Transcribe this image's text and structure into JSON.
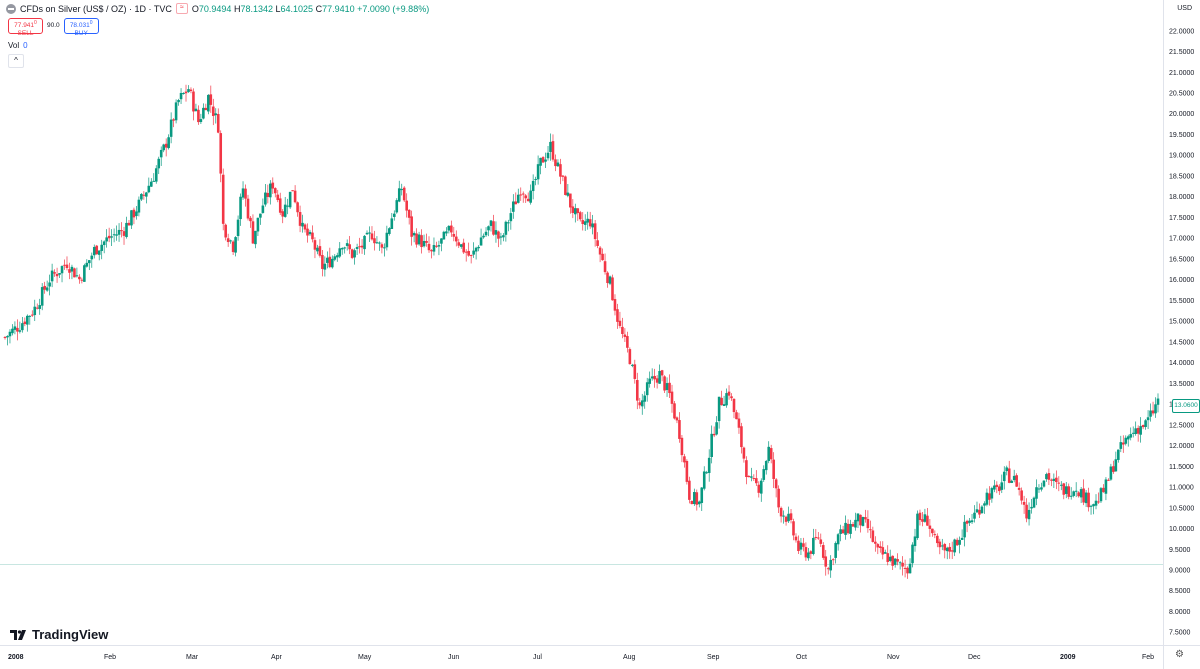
{
  "header": {
    "title": "CFDs on Silver (US$ / OZ) · 1D · TVC",
    "open_label": "O",
    "open": "70.9494",
    "high_label": "H",
    "high": "78.1342",
    "low_label": "L",
    "low": "64.1025",
    "close_label": "C",
    "close": "77.9410",
    "change": "+7.0090 (+9.88%)"
  },
  "trade": {
    "sell_price": "77.941",
    "sell_price_sup": "0",
    "sell_label": "SELL",
    "spread": "90.0",
    "buy_price": "78.031",
    "buy_price_sup": "0",
    "buy_label": "BUY"
  },
  "volume": {
    "label": "Vol",
    "value": "0"
  },
  "currency": "USD",
  "last_price_tag": "13.0600",
  "brand": "TradingView",
  "colors": {
    "up": "#089981",
    "down": "#f23645",
    "accent": "#2962ff"
  },
  "chart_data": {
    "type": "candlestick",
    "ylim": [
      7.3,
      22.2
    ],
    "y_ticks": [
      "22.0000",
      "21.5000",
      "21.0000",
      "20.5000",
      "20.0000",
      "19.5000",
      "19.0000",
      "18.5000",
      "18.0000",
      "17.5000",
      "17.0000",
      "16.5000",
      "16.0000",
      "15.5000",
      "15.0000",
      "14.5000",
      "14.0000",
      "13.5000",
      "13.0000",
      "12.5000",
      "12.0000",
      "11.5000",
      "11.0000",
      "10.5000",
      "10.0000",
      "9.5000",
      "9.0000",
      "8.5000",
      "8.0000",
      "7.5000"
    ],
    "x_labels": [
      "2008",
      "Feb",
      "Mar",
      "Apr",
      "May",
      "Jun",
      "Jul",
      "Aug",
      "Sep",
      "Oct",
      "Nov",
      "Dec",
      "2009",
      "Feb"
    ],
    "anchors": [
      [
        0,
        14.6
      ],
      [
        6,
        14.9
      ],
      [
        12,
        15.3
      ],
      [
        18,
        16.0
      ],
      [
        25,
        16.4
      ],
      [
        30,
        16.0
      ],
      [
        36,
        16.7
      ],
      [
        42,
        17.0
      ],
      [
        48,
        17.2
      ],
      [
        54,
        17.8
      ],
      [
        60,
        18.5
      ],
      [
        65,
        19.3
      ],
      [
        70,
        20.3
      ],
      [
        74,
        20.6
      ],
      [
        78,
        19.8
      ],
      [
        82,
        20.4
      ],
      [
        86,
        19.7
      ],
      [
        88,
        17.3
      ],
      [
        92,
        16.8
      ],
      [
        96,
        18.2
      ],
      [
        100,
        17.0
      ],
      [
        104,
        17.8
      ],
      [
        108,
        18.3
      ],
      [
        112,
        17.6
      ],
      [
        116,
        18.2
      ],
      [
        120,
        17.2
      ],
      [
        124,
        16.9
      ],
      [
        128,
        16.3
      ],
      [
        132,
        16.5
      ],
      [
        136,
        16.9
      ],
      [
        140,
        16.6
      ],
      [
        144,
        16.8
      ],
      [
        148,
        17.1
      ],
      [
        152,
        16.7
      ],
      [
        156,
        17.5
      ],
      [
        160,
        18.2
      ],
      [
        164,
        17.1
      ],
      [
        168,
        16.9
      ],
      [
        172,
        16.6
      ],
      [
        176,
        16.9
      ],
      [
        180,
        17.2
      ],
      [
        184,
        16.8
      ],
      [
        188,
        16.5
      ],
      [
        192,
        17.0
      ],
      [
        196,
        17.3
      ],
      [
        200,
        16.9
      ],
      [
        204,
        17.6
      ],
      [
        208,
        18.2
      ],
      [
        212,
        18.0
      ],
      [
        216,
        18.8
      ],
      [
        220,
        19.2
      ],
      [
        224,
        18.5
      ],
      [
        228,
        17.8
      ],
      [
        232,
        17.3
      ],
      [
        236,
        17.4
      ],
      [
        240,
        16.6
      ],
      [
        244,
        15.9
      ],
      [
        248,
        14.8
      ],
      [
        252,
        14.1
      ],
      [
        256,
        12.9
      ],
      [
        260,
        13.5
      ],
      [
        264,
        13.7
      ],
      [
        268,
        13.2
      ],
      [
        272,
        12.3
      ],
      [
        276,
        10.8
      ],
      [
        280,
        10.6
      ],
      [
        284,
        11.8
      ],
      [
        288,
        13.0
      ],
      [
        292,
        13.3
      ],
      [
        296,
        12.3
      ],
      [
        300,
        11.1
      ],
      [
        304,
        11.0
      ],
      [
        308,
        11.9
      ],
      [
        312,
        10.5
      ],
      [
        316,
        10.2
      ],
      [
        320,
        9.5
      ],
      [
        324,
        9.4
      ],
      [
        328,
        9.8
      ],
      [
        332,
        9.0
      ],
      [
        336,
        9.8
      ],
      [
        340,
        10.0
      ],
      [
        344,
        10.2
      ],
      [
        348,
        10.0
      ],
      [
        352,
        9.4
      ],
      [
        356,
        9.3
      ],
      [
        360,
        9.1
      ],
      [
        364,
        9.0
      ],
      [
        368,
        10.2
      ],
      [
        372,
        10.2
      ],
      [
        376,
        9.5
      ],
      [
        380,
        9.4
      ],
      [
        384,
        9.7
      ],
      [
        388,
        10.1
      ],
      [
        392,
        10.4
      ],
      [
        396,
        10.8
      ],
      [
        400,
        10.9
      ],
      [
        404,
        11.3
      ],
      [
        408,
        11.1
      ],
      [
        412,
        10.3
      ],
      [
        416,
        11.0
      ],
      [
        420,
        11.3
      ],
      [
        424,
        11.0
      ],
      [
        428,
        10.9
      ],
      [
        432,
        11.0
      ],
      [
        436,
        10.7
      ],
      [
        440,
        10.6
      ],
      [
        444,
        11.0
      ],
      [
        448,
        11.7
      ],
      [
        452,
        12.1
      ],
      [
        456,
        12.4
      ],
      [
        460,
        12.5
      ],
      [
        462,
        12.7
      ],
      [
        465,
        13.06
      ]
    ]
  }
}
